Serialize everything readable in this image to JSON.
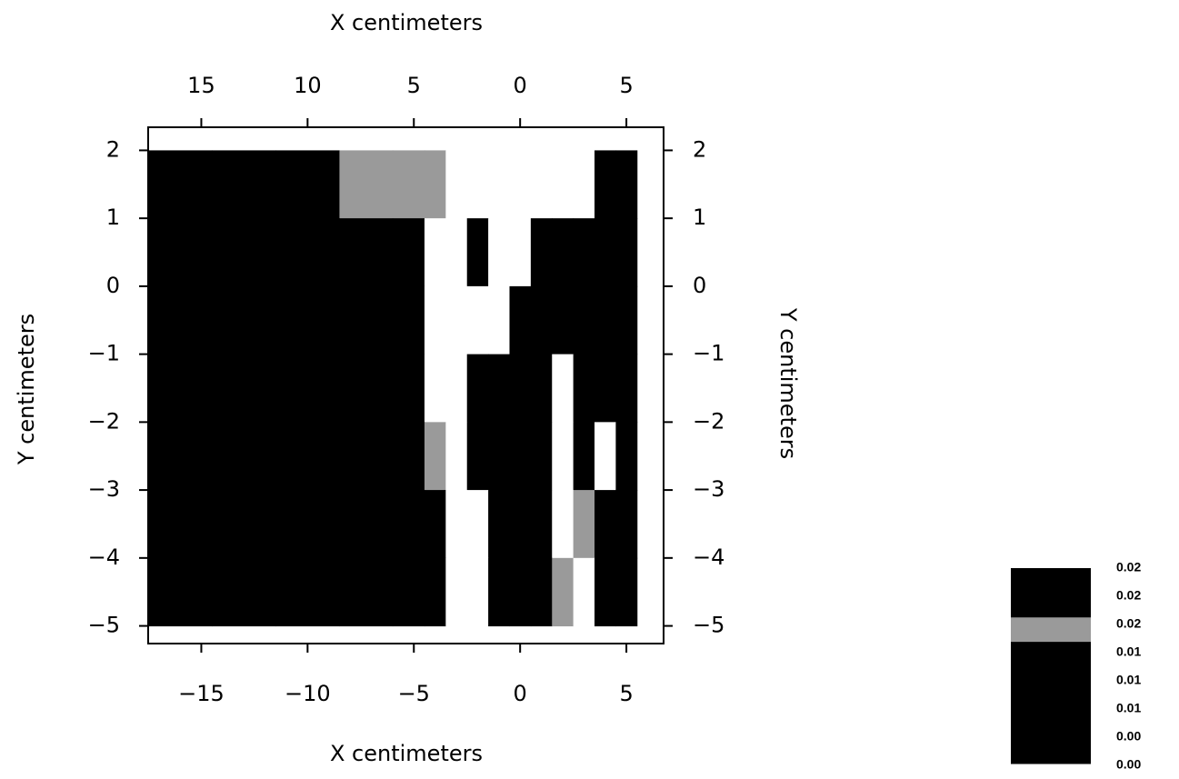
{
  "chart_data": {
    "type": "contour",
    "xlabel": "X centimeters",
    "x2label": "X centimeters",
    "ylabel": "Y centimeters",
    "y2label": "Y centimeters",
    "xlim": [
      -17.5,
      6.75
    ],
    "ylim": [
      -5.26,
      2.34
    ],
    "xticks": [
      {
        "value": -15,
        "label": "−15"
      },
      {
        "value": -10,
        "label": "−10"
      },
      {
        "value": -5,
        "label": "−5"
      },
      0,
      5
    ],
    "x2ticks": [
      {
        "value": -15,
        "label": "15"
      },
      {
        "value": -10,
        "label": "10"
      },
      {
        "value": -5,
        "label": "5"
      },
      0,
      5
    ],
    "yticks": [
      2,
      1,
      0,
      {
        "value": -1,
        "label": "−1"
      },
      {
        "value": -2,
        "label": "−2"
      },
      {
        "value": -3,
        "label": "−3"
      },
      {
        "value": -4,
        "label": "−4"
      },
      {
        "value": -5,
        "label": "−5"
      }
    ],
    "x": [
      -16,
      -13,
      -10,
      -7,
      -5,
      -4,
      -3,
      -2,
      -1,
      0,
      1,
      2,
      3,
      4,
      5
    ],
    "y": [
      1.5,
      0.5,
      -0.5,
      -1.5,
      -2.5,
      -3.5,
      -4.5
    ],
    "z": [
      [
        0.025,
        0.025,
        0.025,
        0.019,
        0.019,
        0.019,
        0.001,
        0.001,
        0.001,
        0.001,
        0.001,
        0.001,
        0.001,
        0.025,
        0.025
      ],
      [
        0.025,
        0.025,
        0.025,
        0.025,
        0.025,
        0.001,
        0.001,
        0.025,
        0.001,
        0.001,
        0.025,
        0.025,
        0.025,
        0.025,
        0.025
      ],
      [
        0.025,
        0.025,
        0.025,
        0.025,
        0.025,
        0.001,
        0.001,
        0.001,
        0.001,
        0.025,
        0.025,
        0.025,
        0.025,
        0.025,
        0.025
      ],
      [
        0.025,
        0.025,
        0.025,
        0.025,
        0.025,
        0.001,
        0.001,
        0.025,
        0.025,
        0.025,
        0.025,
        0.001,
        0.025,
        0.025,
        0.025
      ],
      [
        0.025,
        0.025,
        0.025,
        0.025,
        0.025,
        0.019,
        0.001,
        0.025,
        0.025,
        0.025,
        0.025,
        0.001,
        0.025,
        0.001,
        0.025
      ],
      [
        0.025,
        0.025,
        0.025,
        0.025,
        0.025,
        0.025,
        0.001,
        0.001,
        0.025,
        0.025,
        0.025,
        0.001,
        0.019,
        0.025,
        0.025
      ],
      [
        0.025,
        0.025,
        0.025,
        0.025,
        0.025,
        0.025,
        0.001,
        0.001,
        0.025,
        0.025,
        0.025,
        0.019,
        0.001,
        0.025,
        0.025
      ]
    ],
    "levels": [
      0.002,
      0.005,
      0.008,
      0.011,
      0.014,
      0.017,
      0.02,
      0.023,
      0.026
    ],
    "colors": [
      "#000000",
      "#000000",
      "#000000",
      "#000000",
      "#000000",
      "#9a9a9a",
      "#000000",
      "#000000"
    ],
    "below_color": "#ffffff",
    "colorbar_labels": [
      "0.02",
      "0.02",
      "0.02",
      "0.01",
      "0.01",
      "0.01",
      "0.00",
      "0.00"
    ]
  }
}
